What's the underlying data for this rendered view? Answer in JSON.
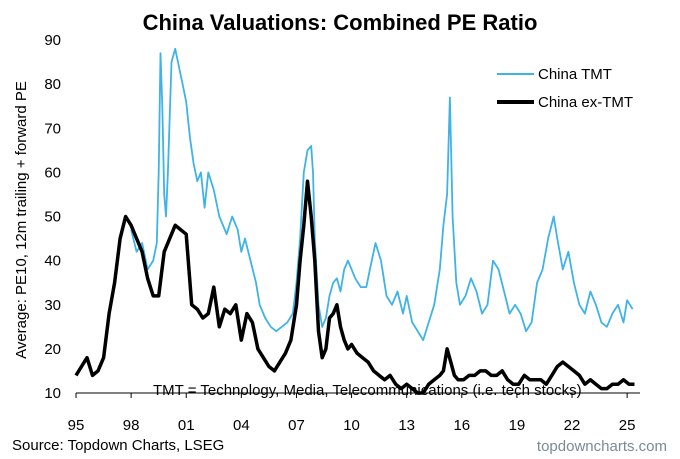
{
  "chart_data": {
    "type": "line",
    "title": "China Valuations: Combined PE Ratio",
    "ylabel": "Average: PE10, 12m trailing + forward PE",
    "xlabel": "",
    "ylim": [
      10,
      90
    ],
    "xlim": [
      1995,
      2025.7
    ],
    "yticks": [
      10,
      20,
      30,
      40,
      50,
      60,
      70,
      80,
      90
    ],
    "xticks": [
      {
        "value": 1995,
        "label": "95"
      },
      {
        "value": 1998,
        "label": "98"
      },
      {
        "value": 2001,
        "label": "01"
      },
      {
        "value": 2004,
        "label": "04"
      },
      {
        "value": 2007,
        "label": "07"
      },
      {
        "value": 2010,
        "label": "10"
      },
      {
        "value": 2013,
        "label": "13"
      },
      {
        "value": 2016,
        "label": "16"
      },
      {
        "value": 2019,
        "label": "19"
      },
      {
        "value": 2022,
        "label": "22"
      },
      {
        "value": 2025,
        "label": "25"
      }
    ],
    "grid": false,
    "legend_position": "top-right",
    "annotation": "TMT = Technology, Media, Telecommunications  (i.e. tech stocks)",
    "series": [
      {
        "name": "China TMT",
        "color": "#3fb3e6",
        "x": [
          1998.0,
          1998.3,
          1998.6,
          1998.9,
          1999.2,
          1999.4,
          1999.5,
          1999.6,
          1999.7,
          1999.8,
          1999.9,
          2000.0,
          2000.2,
          2000.4,
          2000.6,
          2000.8,
          2001.0,
          2001.2,
          2001.4,
          2001.6,
          2001.8,
          2002.0,
          2002.2,
          2002.5,
          2002.8,
          2003.0,
          2003.2,
          2003.5,
          2003.8,
          2004.0,
          2004.2,
          2004.5,
          2004.8,
          2005.0,
          2005.3,
          2005.6,
          2005.9,
          2006.2,
          2006.5,
          2006.8,
          2007.0,
          2007.2,
          2007.4,
          2007.6,
          2007.8,
          2007.9,
          2008.0,
          2008.2,
          2008.4,
          2008.6,
          2008.8,
          2009.0,
          2009.2,
          2009.4,
          2009.6,
          2009.8,
          2010.0,
          2010.2,
          2010.5,
          2010.8,
          2011.0,
          2011.3,
          2011.6,
          2011.9,
          2012.2,
          2012.5,
          2012.8,
          2013.0,
          2013.3,
          2013.6,
          2013.9,
          2014.2,
          2014.5,
          2014.8,
          2015.0,
          2015.2,
          2015.35,
          2015.5,
          2015.7,
          2015.9,
          2016.2,
          2016.5,
          2016.8,
          2017.1,
          2017.4,
          2017.7,
          2018.0,
          2018.3,
          2018.6,
          2018.9,
          2019.2,
          2019.5,
          2019.8,
          2020.1,
          2020.4,
          2020.7,
          2021.0,
          2021.2,
          2021.5,
          2021.8,
          2022.1,
          2022.4,
          2022.7,
          2023.0,
          2023.3,
          2023.6,
          2023.9,
          2024.2,
          2024.5,
          2024.8,
          2025.0,
          2025.3
        ],
        "values": [
          47,
          42,
          44,
          38,
          40,
          44,
          60,
          87,
          75,
          55,
          50,
          60,
          85,
          88,
          84,
          80,
          76,
          68,
          62,
          58,
          60,
          52,
          60,
          56,
          50,
          48,
          46,
          50,
          47,
          42,
          45,
          40,
          35,
          30,
          27,
          25,
          24,
          25,
          26,
          28,
          35,
          45,
          60,
          65,
          66,
          60,
          45,
          30,
          25,
          27,
          32,
          35,
          36,
          33,
          38,
          40,
          38,
          36,
          34,
          34,
          38,
          44,
          40,
          32,
          30,
          33,
          28,
          32,
          26,
          24,
          22,
          26,
          30,
          38,
          48,
          55,
          77,
          50,
          35,
          30,
          32,
          36,
          33,
          28,
          30,
          40,
          38,
          33,
          28,
          30,
          28,
          24,
          26,
          35,
          38,
          45,
          50,
          45,
          38,
          42,
          35,
          30,
          28,
          33,
          30,
          26,
          25,
          28,
          30,
          26,
          31,
          29
        ]
      },
      {
        "name": "China ex-TMT",
        "color": "#000000",
        "x": [
          1995.0,
          1995.3,
          1995.6,
          1995.9,
          1996.2,
          1996.5,
          1996.8,
          1997.1,
          1997.4,
          1997.7,
          1998.0,
          1998.3,
          1998.6,
          1998.9,
          1999.2,
          1999.5,
          1999.8,
          2000.1,
          2000.4,
          2000.7,
          2001.0,
          2001.3,
          2001.6,
          2001.9,
          2002.2,
          2002.5,
          2002.8,
          2003.1,
          2003.4,
          2003.7,
          2004.0,
          2004.3,
          2004.6,
          2004.9,
          2005.2,
          2005.5,
          2005.8,
          2006.1,
          2006.4,
          2006.7,
          2007.0,
          2007.2,
          2007.4,
          2007.6,
          2007.8,
          2008.0,
          2008.2,
          2008.4,
          2008.6,
          2008.8,
          2009.0,
          2009.2,
          2009.4,
          2009.6,
          2009.8,
          2010.0,
          2010.3,
          2010.6,
          2010.9,
          2011.2,
          2011.5,
          2011.8,
          2012.1,
          2012.4,
          2012.7,
          2013.0,
          2013.3,
          2013.6,
          2013.9,
          2014.2,
          2014.5,
          2014.8,
          2015.0,
          2015.2,
          2015.4,
          2015.6,
          2015.8,
          2016.1,
          2016.4,
          2016.7,
          2017.0,
          2017.3,
          2017.6,
          2017.9,
          2018.2,
          2018.5,
          2018.8,
          2019.1,
          2019.4,
          2019.7,
          2020.0,
          2020.3,
          2020.6,
          2020.9,
          2021.2,
          2021.5,
          2021.8,
          2022.1,
          2022.4,
          2022.7,
          2023.0,
          2023.3,
          2023.6,
          2023.9,
          2024.2,
          2024.5,
          2024.8,
          2025.1,
          2025.4
        ],
        "values": [
          14,
          16,
          18,
          14,
          15,
          18,
          28,
          35,
          45,
          50,
          48,
          45,
          42,
          36,
          32,
          32,
          42,
          45,
          48,
          47,
          46,
          30,
          29,
          27,
          28,
          34,
          25,
          29,
          28,
          30,
          22,
          28,
          26,
          20,
          18,
          16,
          15,
          17,
          19,
          22,
          30,
          40,
          48,
          58,
          50,
          40,
          24,
          18,
          20,
          27,
          28,
          30,
          25,
          22,
          20,
          21,
          19,
          18,
          17,
          15,
          14,
          13,
          14,
          12,
          11,
          12,
          11,
          10,
          10,
          12,
          13,
          14,
          15,
          20,
          17,
          14,
          13,
          13,
          14,
          14,
          15,
          15,
          14,
          14,
          15,
          13,
          12,
          12,
          14,
          13,
          13,
          13,
          12,
          14,
          16,
          17,
          16,
          15,
          14,
          12,
          13,
          12,
          11,
          11,
          12,
          12,
          13,
          12,
          12
        ]
      }
    ]
  },
  "source": "Source: Topdown Charts, LSEG",
  "brand": "topdowncharts.com"
}
